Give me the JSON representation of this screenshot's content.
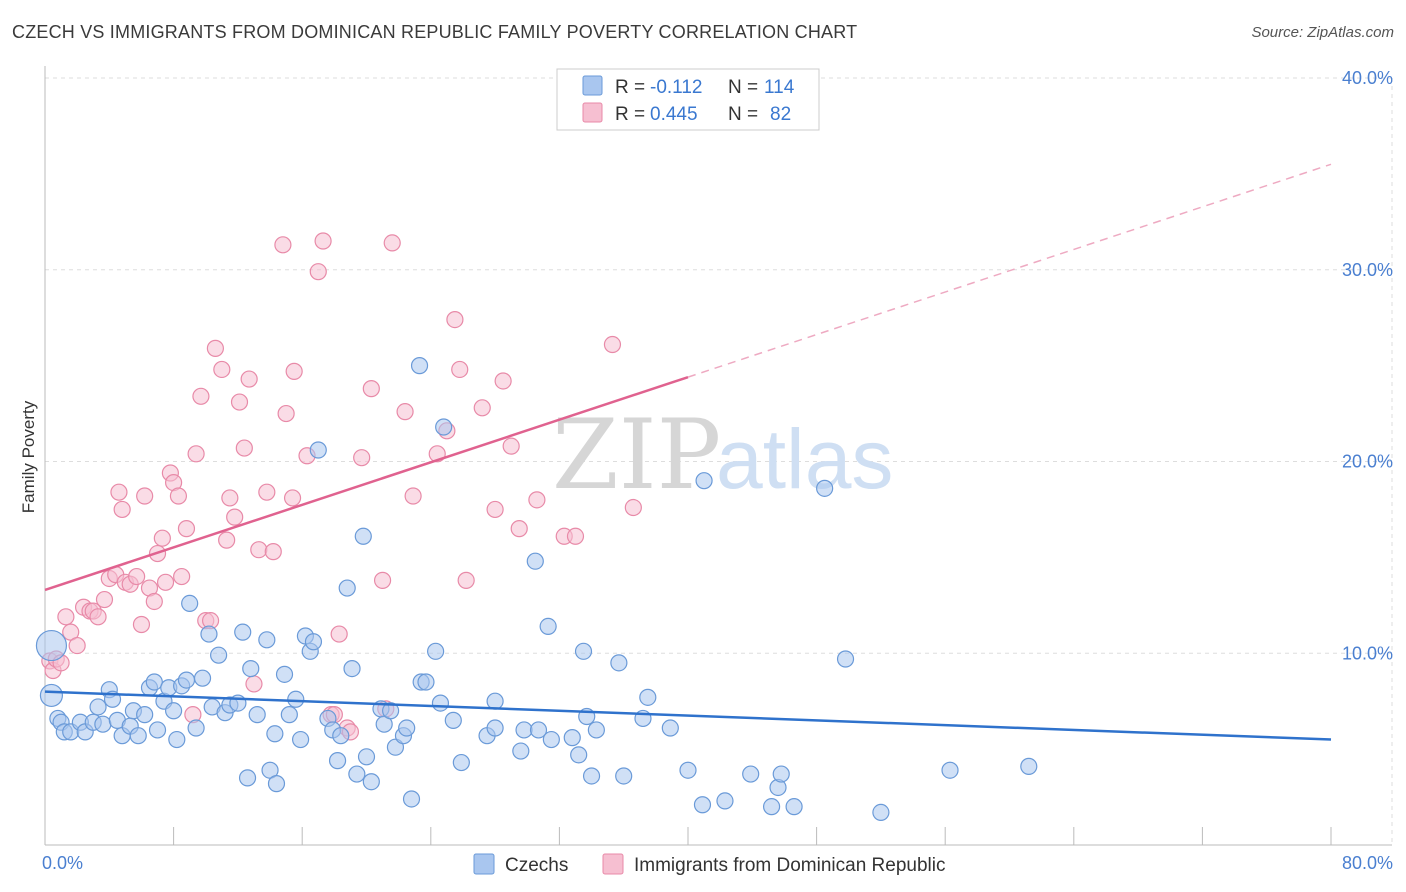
{
  "title": "CZECH VS IMMIGRANTS FROM DOMINICAN REPUBLIC FAMILY POVERTY CORRELATION CHART",
  "source": "Source: ZipAtlas.com",
  "watermark": {
    "zip": "ZIP",
    "atlas": "atlas"
  },
  "colors": {
    "blue_fill": "#a9c6ef",
    "blue_stroke": "#6a9ad8",
    "blue_line": "#2f72cc",
    "pink_fill": "#f6bfd1",
    "pink_stroke": "#e88aa8",
    "pink_line": "#e0628f",
    "grid": "#dddddd",
    "tick_label": "#4a7fd0"
  },
  "legend": {
    "rows": [
      {
        "r_label": "R =",
        "r_value": "-0.112",
        "n_label": "N =",
        "n_value": "114"
      },
      {
        "r_label": "R =",
        "r_value": "0.445",
        "n_label": "N =",
        "n_value": "82"
      }
    ],
    "placement": "top-center"
  },
  "chart_data": {
    "type": "scatter",
    "xlabel": "",
    "ylabel": "Family Poverty",
    "xlim": [
      0,
      80
    ],
    "ylim": [
      0,
      40
    ],
    "x_ticks": [
      "0.0%",
      "80.0%"
    ],
    "y_ticks": [
      {
        "value": 10,
        "label": "10.0%"
      },
      {
        "value": 20,
        "label": "20.0%"
      },
      {
        "value": 30,
        "label": "30.0%"
      },
      {
        "value": 40,
        "label": "40.0%"
      }
    ],
    "grid": true,
    "series": [
      {
        "name": "Czechs",
        "trend": {
          "x": [
            0,
            80
          ],
          "y": [
            8.0,
            5.5
          ]
        },
        "points": [
          [
            0.4,
            10.4
          ],
          [
            0.4,
            7.8
          ],
          [
            0.8,
            6.6
          ],
          [
            1.0,
            6.4
          ],
          [
            1.2,
            5.9
          ],
          [
            1.6,
            5.9
          ],
          [
            2.2,
            6.4
          ],
          [
            2.5,
            5.9
          ],
          [
            3.0,
            6.4
          ],
          [
            3.3,
            7.2
          ],
          [
            3.6,
            6.3
          ],
          [
            4.0,
            8.1
          ],
          [
            4.2,
            7.6
          ],
          [
            4.5,
            6.5
          ],
          [
            4.8,
            5.7
          ],
          [
            5.3,
            6.2
          ],
          [
            5.5,
            7.0
          ],
          [
            5.8,
            5.7
          ],
          [
            6.2,
            6.8
          ],
          [
            6.5,
            8.2
          ],
          [
            6.8,
            8.5
          ],
          [
            7.0,
            6.0
          ],
          [
            7.4,
            7.5
          ],
          [
            7.7,
            8.2
          ],
          [
            8.0,
            7.0
          ],
          [
            8.2,
            5.5
          ],
          [
            8.5,
            8.3
          ],
          [
            8.8,
            8.6
          ],
          [
            9.0,
            12.6
          ],
          [
            9.4,
            6.1
          ],
          [
            9.8,
            8.7
          ],
          [
            10.2,
            11.0
          ],
          [
            10.4,
            7.2
          ],
          [
            10.8,
            9.9
          ],
          [
            11.2,
            6.9
          ],
          [
            11.5,
            7.3
          ],
          [
            12.0,
            7.4
          ],
          [
            12.3,
            11.1
          ],
          [
            12.6,
            3.5
          ],
          [
            12.8,
            9.2
          ],
          [
            13.2,
            6.8
          ],
          [
            13.8,
            10.7
          ],
          [
            14.0,
            3.9
          ],
          [
            14.3,
            5.8
          ],
          [
            14.4,
            3.2
          ],
          [
            14.9,
            8.9
          ],
          [
            15.2,
            6.8
          ],
          [
            15.6,
            7.6
          ],
          [
            15.9,
            5.5
          ],
          [
            16.2,
            10.9
          ],
          [
            16.5,
            10.1
          ],
          [
            16.7,
            10.6
          ],
          [
            17.0,
            20.6
          ],
          [
            17.6,
            6.6
          ],
          [
            17.9,
            6.0
          ],
          [
            18.2,
            4.4
          ],
          [
            18.4,
            5.7
          ],
          [
            18.8,
            13.4
          ],
          [
            19.1,
            9.2
          ],
          [
            19.4,
            3.7
          ],
          [
            19.8,
            16.1
          ],
          [
            20.0,
            4.6
          ],
          [
            20.3,
            3.3
          ],
          [
            20.9,
            7.1
          ],
          [
            21.1,
            6.3
          ],
          [
            21.5,
            7.0
          ],
          [
            21.8,
            5.1
          ],
          [
            22.3,
            5.7
          ],
          [
            22.5,
            6.1
          ],
          [
            22.8,
            2.4
          ],
          [
            23.3,
            25.0
          ],
          [
            23.4,
            8.5
          ],
          [
            23.7,
            8.5
          ],
          [
            24.3,
            10.1
          ],
          [
            24.6,
            7.4
          ],
          [
            24.8,
            21.8
          ],
          [
            25.4,
            6.5
          ],
          [
            25.9,
            4.3
          ],
          [
            27.5,
            5.7
          ],
          [
            28.0,
            7.5
          ],
          [
            28.0,
            6.1
          ],
          [
            29.6,
            4.9
          ],
          [
            29.8,
            6.0
          ],
          [
            30.5,
            14.8
          ],
          [
            30.7,
            6.0
          ],
          [
            31.3,
            11.4
          ],
          [
            31.5,
            5.5
          ],
          [
            32.8,
            5.6
          ],
          [
            33.2,
            4.7
          ],
          [
            33.5,
            10.1
          ],
          [
            33.7,
            6.7
          ],
          [
            34.0,
            3.6
          ],
          [
            34.3,
            6.0
          ],
          [
            35.7,
            9.5
          ],
          [
            36.0,
            3.6
          ],
          [
            37.2,
            6.6
          ],
          [
            37.5,
            7.7
          ],
          [
            38.9,
            6.1
          ],
          [
            40.0,
            3.9
          ],
          [
            40.9,
            2.1
          ],
          [
            41.0,
            19.0
          ],
          [
            42.3,
            2.3
          ],
          [
            43.9,
            3.7
          ],
          [
            45.2,
            2.0
          ],
          [
            45.6,
            3.0
          ],
          [
            45.8,
            3.7
          ],
          [
            46.6,
            2.0
          ],
          [
            48.5,
            18.6
          ],
          [
            49.8,
            9.7
          ],
          [
            52.0,
            1.7
          ],
          [
            56.3,
            3.9
          ],
          [
            61.2,
            4.1
          ]
        ]
      },
      {
        "name": "Immigrants from Dominican Republic",
        "trend": {
          "x": [
            0,
            40
          ],
          "y": [
            13.3,
            24.4
          ]
        },
        "trend_dashed": {
          "x": [
            40,
            80
          ],
          "y": [
            24.4,
            35.5
          ]
        },
        "points": [
          [
            0.3,
            9.6
          ],
          [
            0.5,
            9.1
          ],
          [
            0.7,
            9.7
          ],
          [
            1.0,
            9.5
          ],
          [
            1.3,
            11.9
          ],
          [
            1.6,
            11.1
          ],
          [
            2.0,
            10.4
          ],
          [
            2.4,
            12.4
          ],
          [
            2.8,
            12.2
          ],
          [
            3.0,
            12.2
          ],
          [
            3.3,
            11.9
          ],
          [
            3.7,
            12.8
          ],
          [
            4.0,
            13.9
          ],
          [
            4.4,
            14.1
          ],
          [
            4.6,
            18.4
          ],
          [
            4.8,
            17.5
          ],
          [
            5.0,
            13.7
          ],
          [
            5.3,
            13.6
          ],
          [
            5.7,
            14.0
          ],
          [
            6.0,
            11.5
          ],
          [
            6.2,
            18.2
          ],
          [
            6.5,
            13.4
          ],
          [
            6.8,
            12.7
          ],
          [
            7.0,
            15.2
          ],
          [
            7.3,
            16.0
          ],
          [
            7.5,
            13.7
          ],
          [
            7.8,
            19.4
          ],
          [
            8.0,
            18.9
          ],
          [
            8.3,
            18.2
          ],
          [
            8.5,
            14.0
          ],
          [
            8.8,
            16.5
          ],
          [
            9.2,
            6.8
          ],
          [
            9.4,
            20.4
          ],
          [
            9.7,
            23.4
          ],
          [
            10.0,
            11.7
          ],
          [
            10.3,
            11.7
          ],
          [
            10.6,
            25.9
          ],
          [
            11.0,
            24.8
          ],
          [
            11.3,
            15.9
          ],
          [
            11.5,
            18.1
          ],
          [
            11.8,
            17.1
          ],
          [
            12.1,
            23.1
          ],
          [
            12.4,
            20.7
          ],
          [
            12.7,
            24.3
          ],
          [
            13.0,
            8.4
          ],
          [
            13.3,
            15.4
          ],
          [
            13.8,
            18.4
          ],
          [
            14.2,
            15.3
          ],
          [
            14.8,
            31.3
          ],
          [
            15.0,
            22.5
          ],
          [
            15.4,
            18.1
          ],
          [
            15.5,
            24.7
          ],
          [
            16.3,
            20.3
          ],
          [
            17.0,
            29.9
          ],
          [
            17.3,
            31.5
          ],
          [
            17.8,
            6.8
          ],
          [
            18.0,
            6.8
          ],
          [
            18.3,
            11.0
          ],
          [
            18.8,
            6.1
          ],
          [
            19.0,
            5.9
          ],
          [
            19.7,
            20.2
          ],
          [
            20.3,
            23.8
          ],
          [
            21.0,
            13.8
          ],
          [
            21.2,
            7.1
          ],
          [
            21.6,
            31.4
          ],
          [
            22.4,
            22.6
          ],
          [
            22.9,
            18.2
          ],
          [
            24.4,
            20.4
          ],
          [
            25.0,
            21.6
          ],
          [
            25.5,
            27.4
          ],
          [
            25.8,
            24.8
          ],
          [
            26.2,
            13.8
          ],
          [
            27.2,
            22.8
          ],
          [
            28.0,
            17.5
          ],
          [
            28.5,
            24.2
          ],
          [
            29.0,
            20.8
          ],
          [
            29.5,
            16.5
          ],
          [
            30.6,
            18.0
          ],
          [
            32.3,
            16.1
          ],
          [
            33.0,
            16.1
          ],
          [
            35.3,
            26.1
          ],
          [
            36.6,
            17.6
          ]
        ]
      }
    ]
  },
  "bottom_legend": [
    {
      "label": "Czechs"
    },
    {
      "label": "Immigrants from Dominican Republic"
    }
  ]
}
